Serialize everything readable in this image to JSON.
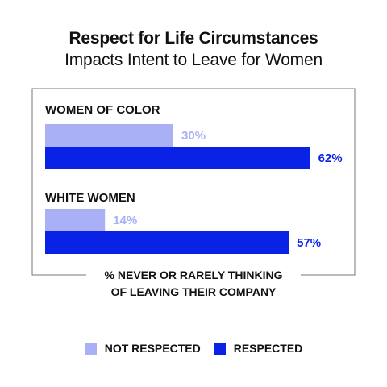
{
  "title": "Respect for Life Circumstances",
  "subtitle": "Impacts Intent to Leave for Women",
  "colors": {
    "not_respected": "#aab0f6",
    "respected": "#0a22e6",
    "frame": "#777777"
  },
  "chart_data": {
    "type": "bar",
    "orientation": "horizontal",
    "title": "Respect for Life Circumstances Impacts Intent to Leave for Women",
    "categories": [
      "WOMEN OF COLOR",
      "WHITE WOMEN"
    ],
    "series": [
      {
        "name": "NOT RESPECTED",
        "values": [
          30,
          14
        ],
        "labels": [
          "30%",
          "14%"
        ]
      },
      {
        "name": "RESPECTED",
        "values": [
          62,
          57
        ],
        "labels": [
          "62%",
          "57%"
        ]
      }
    ],
    "xlabel": "% NEVER OR RARELY THINKING OF LEAVING THEIR COMPANY",
    "ylabel": "",
    "xlim": [
      0,
      100
    ],
    "grid": false,
    "legend": "bottom"
  },
  "axis_note_lines": [
    "% NEVER OR RARELY THINKING",
    "OF LEAVING THEIR COMPANY"
  ],
  "legend": {
    "items": [
      {
        "label": "NOT RESPECTED",
        "color": "#aab0f6"
      },
      {
        "label": "RESPECTED",
        "color": "#0a22e6"
      }
    ]
  }
}
